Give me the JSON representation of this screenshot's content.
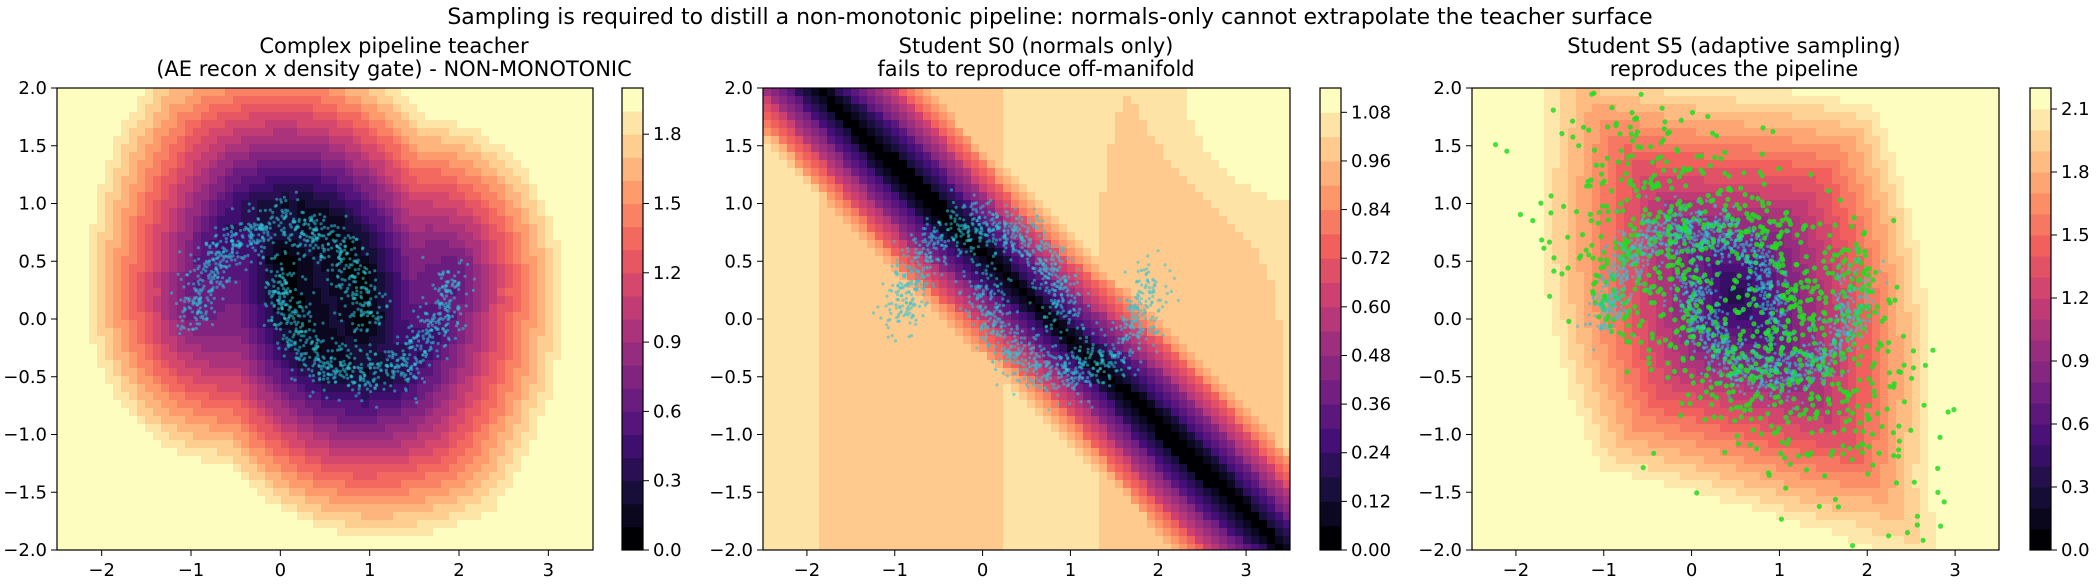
{
  "figure": {
    "suptitle": "Sampling is required to distill a non-monotonic pipeline: normals-only cannot extrapolate the teacher surface"
  },
  "colormap": [
    "#000004",
    "#180f3d",
    "#440f76",
    "#721f81",
    "#9e2f7f",
    "#cd4071",
    "#f1605d",
    "#fd9668",
    "#feca8d",
    "#fcfdbf"
  ],
  "chart_data": [
    {
      "type": "heatmap",
      "subtype": "filled-contour with scatter overlay",
      "title_lines": [
        "Complex pipeline teacher",
        "(AE recon x density gate) - NON-MONOTONIC"
      ],
      "xlim": [
        -2.5,
        3.5
      ],
      "ylim": [
        -2.0,
        2.0
      ],
      "xticks": [
        -2,
        -1,
        0,
        1,
        2,
        3
      ],
      "yticks": [
        -2.0,
        -1.5,
        -1.0,
        -0.5,
        0.0,
        0.5,
        1.0,
        1.5,
        2.0
      ],
      "surface": "teacher",
      "colorbar": {
        "vmin": 0.0,
        "vmax": 2.0,
        "levels": 20,
        "ticks": [
          0.0,
          0.3,
          0.6,
          0.9,
          1.2,
          1.5,
          1.8
        ],
        "tick_labels": [
          "0.0",
          "0.3",
          "0.6",
          "0.9",
          "1.2",
          "1.5",
          "1.8"
        ]
      },
      "series": [
        {
          "role": "normal samples (two-moons)",
          "color": "#2ec4d6",
          "count": 1400,
          "marker_size": 1.6
        }
      ]
    },
    {
      "type": "heatmap",
      "subtype": "filled-contour with scatter overlay",
      "title_lines": [
        "Student S0 (normals only)",
        "fails to reproduce off-manifold"
      ],
      "xlim": [
        -2.5,
        3.5
      ],
      "ylim": [
        -2.0,
        2.0
      ],
      "xticks": [
        -2,
        -1,
        0,
        1,
        2,
        3
      ],
      "yticks": [
        -2.0,
        -1.5,
        -1.0,
        -0.5,
        0.0,
        0.5,
        1.0,
        1.5,
        2.0
      ],
      "surface": "linear-band",
      "colorbar": {
        "vmin": 0.0,
        "vmax": 1.14,
        "levels": 19,
        "ticks": [
          0.0,
          0.12,
          0.24,
          0.36,
          0.48,
          0.6,
          0.72,
          0.84,
          0.96,
          1.08
        ],
        "tick_labels": [
          "0.00",
          "0.12",
          "0.24",
          "0.36",
          "0.48",
          "0.60",
          "0.72",
          "0.84",
          "0.96",
          "1.08"
        ]
      },
      "series": [
        {
          "role": "normal samples (two-moons)",
          "color": "#2ec4d6",
          "count": 1400,
          "marker_size": 1.6
        }
      ]
    },
    {
      "type": "heatmap",
      "subtype": "filled-contour with scatter overlay",
      "title_lines": [
        "Student S5 (adaptive sampling)",
        "reproduces the pipeline"
      ],
      "xlim": [
        -2.5,
        3.5
      ],
      "ylim": [
        -2.0,
        2.0
      ],
      "xticks": [
        -2,
        -1,
        0,
        1,
        2,
        3
      ],
      "yticks": [
        -2.0,
        -1.5,
        -1.0,
        -0.5,
        0.0,
        0.5,
        1.0,
        1.5,
        2.0
      ],
      "surface": "student",
      "colorbar": {
        "vmin": 0.0,
        "vmax": 2.2,
        "levels": 22,
        "ticks": [
          0.0,
          0.3,
          0.6,
          0.9,
          1.2,
          1.5,
          1.8,
          2.1
        ],
        "tick_labels": [
          "0.0",
          "0.3",
          "0.6",
          "0.9",
          "1.2",
          "1.5",
          "1.8",
          "2.1"
        ]
      },
      "series": [
        {
          "role": "adaptive samples",
          "color": "#22dd22",
          "count": 1100,
          "marker_size": 2.6
        },
        {
          "role": "normal samples (two-moons)",
          "color": "#2ec4d6",
          "count": 1400,
          "marker_size": 1.6
        }
      ]
    }
  ]
}
